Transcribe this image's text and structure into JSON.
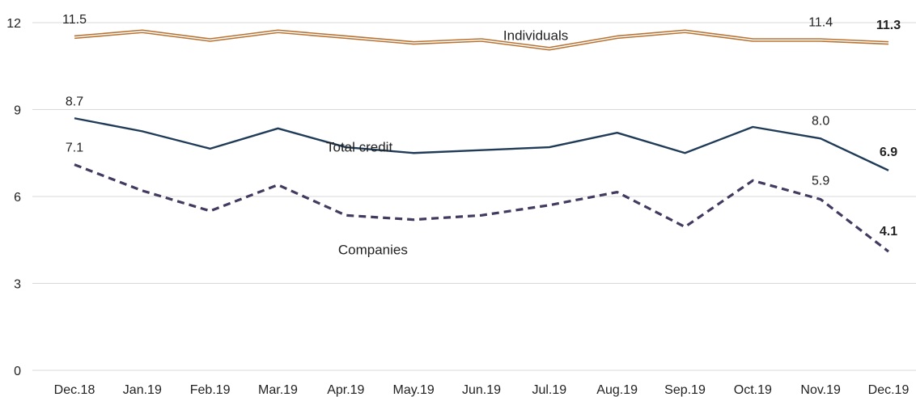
{
  "chart_data": {
    "type": "line",
    "categories": [
      "Dec.18",
      "Jan.19",
      "Feb.19",
      "Mar.19",
      "Apr.19",
      "May.19",
      "Jun.19",
      "Jul.19",
      "Aug.19",
      "Sep.19",
      "Oct.19",
      "Nov.19",
      "Dec.19"
    ],
    "ylim": [
      0,
      12
    ],
    "yticks": [
      0,
      3,
      6,
      9,
      12
    ],
    "grid": "horizontal",
    "series": [
      {
        "name": "Individuals",
        "style": "double",
        "color": "#b87333",
        "values": [
          11.5,
          11.7,
          11.4,
          11.7,
          11.5,
          11.3,
          11.4,
          11.1,
          11.5,
          11.7,
          11.4,
          11.4,
          11.3
        ]
      },
      {
        "name": "Total credit",
        "style": "solid",
        "color": "#1f3b57",
        "values": [
          8.7,
          8.25,
          7.65,
          8.35,
          7.7,
          7.5,
          7.6,
          7.7,
          8.2,
          7.5,
          8.4,
          8.0,
          6.9
        ]
      },
      {
        "name": "Companies",
        "style": "dashed",
        "color": "#433a5f",
        "values": [
          7.1,
          6.2,
          5.5,
          6.4,
          5.35,
          5.2,
          5.35,
          5.7,
          6.15,
          4.95,
          6.55,
          5.9,
          4.1
        ]
      }
    ],
    "data_labels": [
      {
        "series": 0,
        "index": 0,
        "text": "11.5",
        "bold": false
      },
      {
        "series": 0,
        "index": 11,
        "text": "11.4",
        "bold": false
      },
      {
        "series": 0,
        "index": 12,
        "text": "11.3",
        "bold": true
      },
      {
        "series": 1,
        "index": 0,
        "text": "8.7",
        "bold": false
      },
      {
        "series": 1,
        "index": 11,
        "text": "8.0",
        "bold": false
      },
      {
        "series": 1,
        "index": 12,
        "text": "6.9",
        "bold": true
      },
      {
        "series": 2,
        "index": 0,
        "text": "7.1",
        "bold": false
      },
      {
        "series": 2,
        "index": 11,
        "text": "5.9",
        "bold": false
      },
      {
        "series": 2,
        "index": 12,
        "text": "4.1",
        "bold": true
      }
    ]
  }
}
